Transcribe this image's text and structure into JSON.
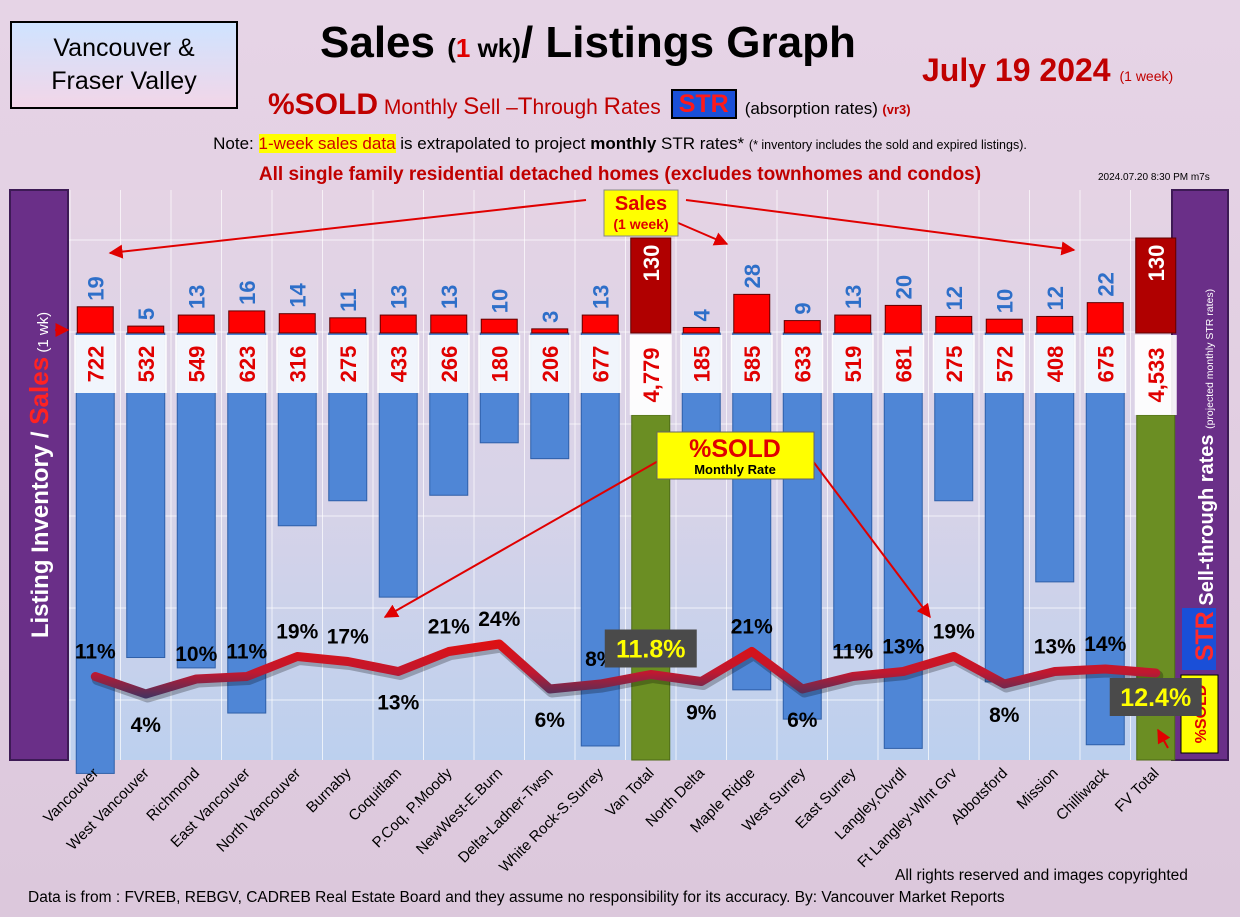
{
  "header": {
    "region_line1": "Vancouver &",
    "region_line2": "Fraser Valley",
    "title_a": "Sales ",
    "title_b": "(",
    "title_c": "1",
    "title_d": " wk)",
    "title_e": "/ Listings Graph",
    "date": "July 19  2024",
    "date_note": "(1 week)",
    "sub_a": "%SOLD",
    "sub_b": " Monthly ",
    "sub_c": "S",
    "sub_d": "ell –",
    "sub_e": "T",
    "sub_f": "hrough ",
    "sub_g": "R",
    "sub_h": "ates",
    "str_badge": "STR",
    "absorption": "(absorption rates)",
    "version": "(vr3)",
    "note_a": "Note: ",
    "note_b": "1-week sales data",
    "note_c": " is extrapolated to project ",
    "note_d": "monthly",
    "note_e": " STR rates* ",
    "note_f": "(* inventory includes the sold and expired listings).",
    "homes": "All single family residential detached homes (excludes townhomes and condos)",
    "timestamp": "2024.07.20 8:30 PM m7s"
  },
  "footer": {
    "rights": "All rights reserved and  images copyrighted",
    "source": "Data is from : FVREB, REBGV, CADREB Real Estate Board and they assume no responsibility for its accuracy. By: Vancouver Market Reports"
  },
  "chart_data": {
    "type": "bar",
    "categories": [
      "Vancouver",
      "West Vancouver",
      "Richmond",
      "East Vancouver",
      "North Vancouver",
      "Burnaby",
      "Coquitlam",
      "P.Coq, P.Moody",
      "NewWest-E.Burn",
      "Delta-Ladner-Twsn",
      "White Rock-S.Surrey",
      "Van Total",
      "North Delta",
      "Maple Ridge",
      "West Surrey",
      "East Surrey",
      "Langley,Clvrdl",
      "Ft Langley-Wlnt Grv",
      "Abbotsford",
      "Mission",
      "Chilliwack",
      "FV Total"
    ],
    "sales": [
      19,
      5,
      13,
      16,
      14,
      11,
      13,
      13,
      10,
      3,
      13,
      130,
      4,
      28,
      9,
      13,
      20,
      12,
      10,
      12,
      22,
      130
    ],
    "listings": [
      722,
      532,
      549,
      623,
      316,
      275,
      433,
      266,
      180,
      206,
      677,
      4779,
      185,
      585,
      633,
      519,
      681,
      275,
      572,
      408,
      675,
      4533
    ],
    "listing_labels": [
      "722",
      "532",
      "549",
      "623",
      "316",
      "275",
      "433",
      "266",
      "180",
      "206",
      "677",
      "4,779",
      "185",
      "585",
      "633",
      "519",
      "681",
      "275",
      "572",
      "408",
      "675",
      "4,533"
    ],
    "sold_pct": [
      11,
      4,
      10,
      11,
      19,
      17,
      13,
      21,
      24,
      6,
      8,
      11.8,
      9,
      21,
      6,
      11,
      13,
      19,
      8,
      13,
      14,
      12.4
    ],
    "sold_pct_labels": [
      "11%",
      "4%",
      "10%",
      "11%",
      "19%",
      "17%",
      "13%",
      "21%",
      "24%",
      "6%",
      "8%",
      "11.8%",
      "9%",
      "21%",
      "6%",
      "11%",
      "13%",
      "19%",
      "8%",
      "13%",
      "14%",
      "12.4%"
    ],
    "totals": [
      "Van Total",
      "FV Total"
    ],
    "y_left_label_a": "Listing Inventory / ",
    "y_left_label_b": "Sales",
    "y_left_label_c": " (1 wk)",
    "y_right_label_a": "STR",
    "y_right_label_b": " Sell-through rates ",
    "y_right_label_c": "(projected monthly STR rates)",
    "right_badge": "%SOLD",
    "callout_sales_line1": "Sales",
    "callout_sales_line2": "(1 week)",
    "callout_sold_line1": "%SOLD",
    "callout_sold_line2": "Monthly Rate",
    "colors": {
      "sales_bar": "#ff0000",
      "total_sales_bar": "#b00000",
      "listing_bar": "#4f86d6",
      "total_listing_bar": "#6b8e23",
      "line_high": "#e01010",
      "line_low": "#1f3a6e",
      "pct_label": "#000000",
      "total_pct_label": "#ffff00"
    }
  }
}
